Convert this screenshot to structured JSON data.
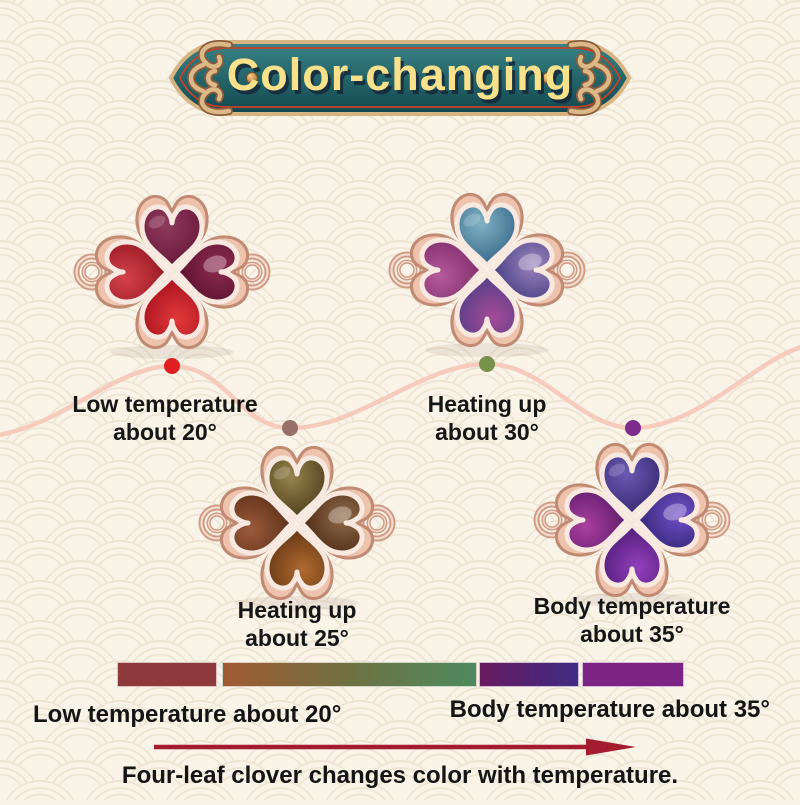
{
  "banner": {
    "title": "Color-changing"
  },
  "stages": [
    {
      "label1": "Low temperature",
      "label2": "about 20°",
      "petals": {
        "top": [
          "#8d3a5c",
          "#6d1c3c"
        ],
        "left": [
          "#d4424a",
          "#9c1b26"
        ],
        "right": [
          "#8d2c50",
          "#5f1430"
        ],
        "bottom": [
          "#e03a3a",
          "#ad1420"
        ]
      }
    },
    {
      "label1": "Heating up",
      "label2": "about 30°",
      "petals": {
        "top": [
          "#7fb3c4",
          "#3e6e8e"
        ],
        "left": [
          "#b35a9a",
          "#86306e"
        ],
        "right": [
          "#9a85bd",
          "#4f4488"
        ],
        "bottom": [
          "#a44b97",
          "#5a3f88"
        ]
      }
    },
    {
      "label1": "Heating up",
      "label2": "about 25°",
      "petals": {
        "top": [
          "#97854f",
          "#54431f"
        ],
        "left": [
          "#9c5a3c",
          "#61341c"
        ],
        "right": [
          "#8f6a4a",
          "#53301a"
        ],
        "bottom": [
          "#b06a30",
          "#6b3a16"
        ]
      }
    },
    {
      "label1": "Body temperature",
      "label2": "about 35°",
      "petals": {
        "top": [
          "#6a5ab2",
          "#3b2d78"
        ],
        "left": [
          "#aa3f9f",
          "#65206f"
        ],
        "right": [
          "#7050c8",
          "#392a7e"
        ],
        "bottom": [
          "#9440bb",
          "#531f7e"
        ]
      }
    }
  ],
  "wave": {
    "line_color": "#f6cbbc",
    "dot_colors": [
      "#e01f23",
      "#997067",
      "#78914b",
      "#7c2c8c"
    ]
  },
  "gradient_bar": {
    "border_color": "rgba(255,255,255,0.7)",
    "segments": [
      {
        "colors": [
          "#8e393b"
        ]
      },
      {
        "colors": [
          "#a15a33",
          "#6f7142",
          "#4e8a5f"
        ]
      },
      {
        "colors": [
          "#681b61",
          "#3e2b83"
        ]
      },
      {
        "colors": [
          "#7d2383"
        ]
      }
    ]
  },
  "footer": {
    "left_label": "Low temperature about 20°",
    "right_label": "Body temperature about 35°",
    "arrow_color": "#a31c30",
    "caption": "Four-leaf clover changes color with temperature."
  },
  "colors": {
    "background": "#f9f3e8",
    "pattern_ring": "#e7dbc5",
    "banner_teal_light": "#3a8487",
    "banner_teal_dark": "#14474e",
    "banner_gold": "#d9b483",
    "banner_pinstripe": "#c84028",
    "rose_gold": "#cf9a83"
  }
}
